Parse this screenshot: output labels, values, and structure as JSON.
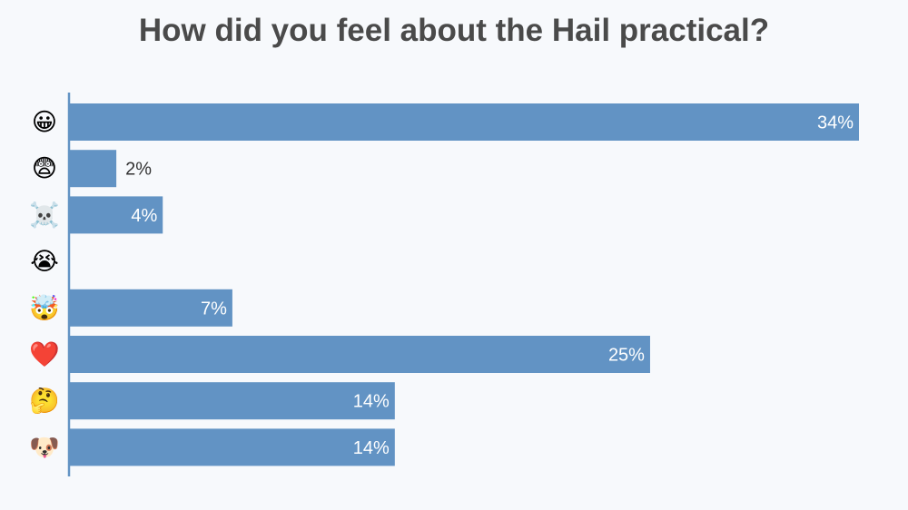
{
  "title": "How did you feel about the Hail practical?",
  "colors": {
    "bar": "#6293c4",
    "axis": "#6293c4",
    "label_inside": "#ffffff",
    "label_outside": "#333333"
  },
  "chart_data": {
    "type": "bar",
    "orientation": "horizontal",
    "title": "How did you feel about the Hail practical?",
    "categories": [
      "😀",
      "😨",
      "☠️",
      "😭",
      "🤯",
      "❤️",
      "🤔",
      "🐶"
    ],
    "values": [
      34,
      2,
      4,
      0,
      7,
      25,
      14,
      14
    ],
    "value_labels": [
      "34%",
      "2%",
      "4%",
      "",
      "7%",
      "25%",
      "14%",
      "14%"
    ],
    "unit": "%",
    "xlim": [
      0,
      34
    ],
    "grid": false,
    "legend": "none"
  }
}
